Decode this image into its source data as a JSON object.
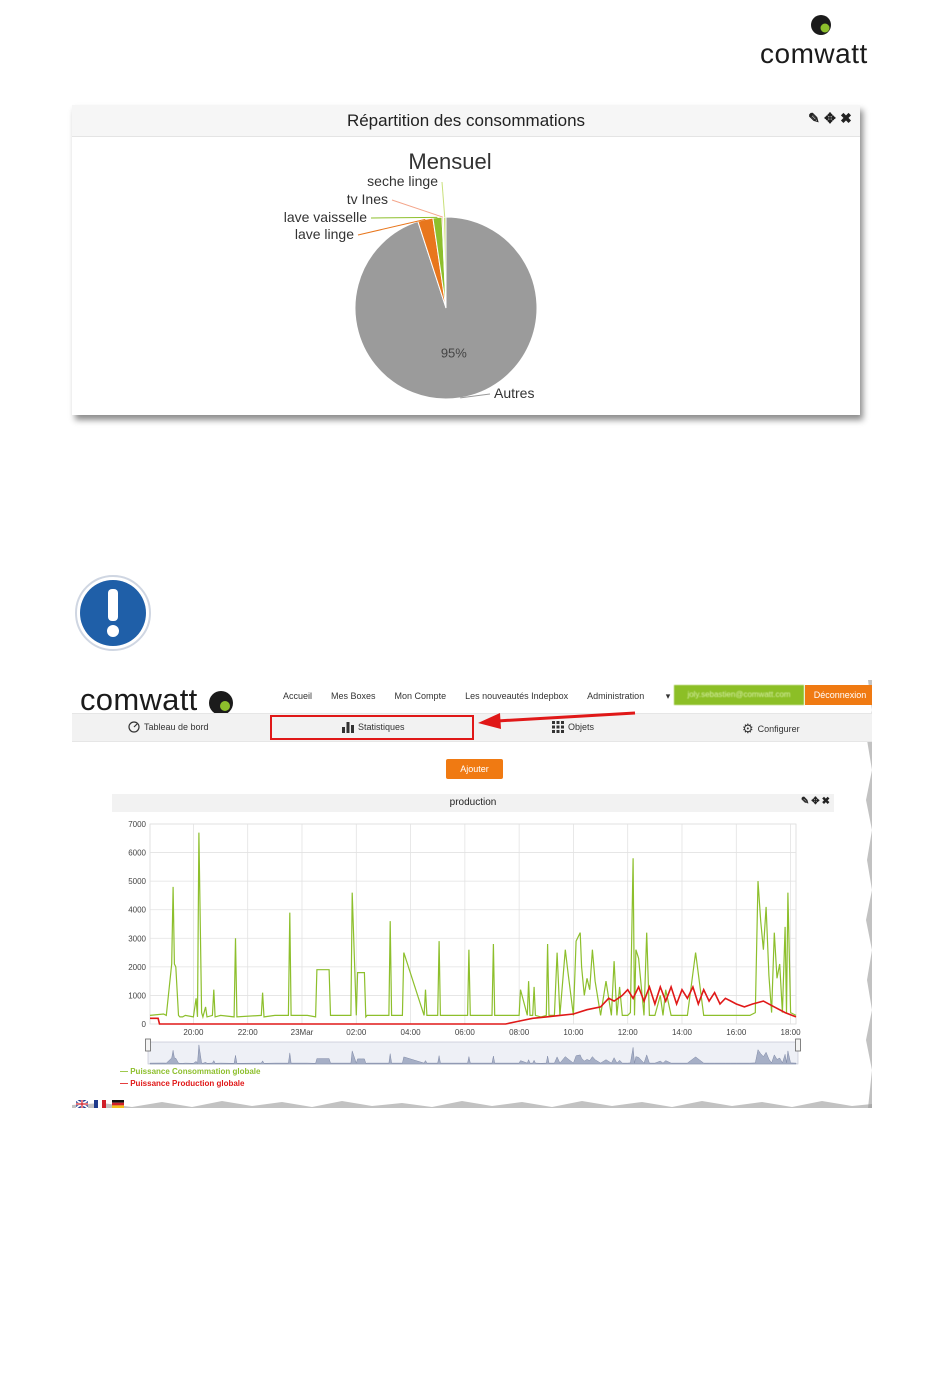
{
  "doc": {
    "brand": "comwatt"
  },
  "pie_panel": {
    "title": "Répartition des consommations",
    "tools": [
      "edit-icon",
      "move-icon",
      "close-icon"
    ]
  },
  "chart_data": [
    {
      "type": "pie",
      "title": "Mensuel",
      "slices": [
        {
          "label": "Autres",
          "value": 95,
          "color": "#9b9b9b",
          "data_label": "95%"
        },
        {
          "label": "lave linge",
          "value": 2.7,
          "color": "#e8761c"
        },
        {
          "label": "lave vaisselle",
          "value": 1.6,
          "color": "#8dbf2c"
        },
        {
          "label": "tv Ines",
          "value": 0.25,
          "color": "#f4a58a"
        },
        {
          "label": "seche linge",
          "value": 0.45,
          "color": "#c9e07a"
        }
      ]
    },
    {
      "type": "line",
      "title": "production",
      "x_ticks": [
        "20:00",
        "22:00",
        "23Mar",
        "02:00",
        "04:00",
        "06:00",
        "08:00",
        "10:00",
        "12:00",
        "14:00",
        "16:00",
        "18:00"
      ],
      "y_ticks": [
        0,
        1000,
        2000,
        3000,
        4000,
        5000,
        6000,
        7000
      ],
      "ylim": [
        0,
        7000
      ],
      "xlim_hours": [
        18.4,
        42.2
      ],
      "series": [
        {
          "name": "Puissance Consommation globale",
          "color": "#8dbf2c",
          "x": [
            18.4,
            18.9,
            19.0,
            19.2,
            19.25,
            19.3,
            19.35,
            19.45,
            19.5,
            19.6,
            19.7,
            20.0,
            20.1,
            20.15,
            20.2,
            20.3,
            20.35,
            20.45,
            20.5,
            20.7,
            20.75,
            20.8,
            21.0,
            21.5,
            21.55,
            21.6,
            22.5,
            22.55,
            22.6,
            23.0,
            23.5,
            23.55,
            23.6,
            24.2,
            24.5,
            24.55,
            24.6,
            25.0,
            25.05,
            25.8,
            25.85,
            26.0,
            26.05,
            26.2,
            26.3,
            26.35,
            26.4,
            27.2,
            27.25,
            27.3,
            27.7,
            27.75,
            28.5,
            28.55,
            28.6,
            29.0,
            29.05,
            29.1,
            30.1,
            30.15,
            30.2,
            31.0,
            31.05,
            31.1,
            32.0,
            32.05,
            32.3,
            32.35,
            32.4,
            32.5,
            32.55,
            32.6,
            32.8,
            33.0,
            33.05,
            33.1,
            33.3,
            33.4,
            33.5,
            33.7,
            33.8,
            34.0,
            34.1,
            34.25,
            34.3,
            34.4,
            34.5,
            34.6,
            34.7,
            34.8,
            35.0,
            35.2,
            35.4,
            35.5,
            35.6,
            35.7,
            35.8,
            36.0,
            36.1,
            36.2,
            36.25,
            36.3,
            36.4,
            36.6,
            36.7,
            36.8,
            37.0,
            37.2,
            37.3,
            37.4,
            37.6,
            38.0,
            38.2,
            38.5,
            38.8,
            39.0,
            39.2,
            39.4,
            39.6,
            39.8,
            40.0,
            40.5,
            40.7,
            40.8,
            40.9,
            41.0,
            41.1,
            41.2,
            41.3,
            41.4,
            41.5,
            41.6,
            41.7,
            41.8,
            41.85,
            41.9,
            42.0,
            42.2
          ],
          "y": [
            300,
            350,
            300,
            2100,
            4800,
            2100,
            2000,
            300,
            250,
            250,
            300,
            250,
            900,
            250,
            6700,
            400,
            250,
            600,
            250,
            300,
            1200,
            250,
            300,
            250,
            3000,
            250,
            300,
            1100,
            250,
            300,
            300,
            3900,
            300,
            300,
            250,
            1900,
            1900,
            1900,
            300,
            300,
            4600,
            300,
            1800,
            1800,
            1800,
            250,
            300,
            300,
            3600,
            300,
            300,
            2500,
            300,
            1200,
            300,
            300,
            2900,
            300,
            300,
            2600,
            300,
            300,
            2800,
            300,
            300,
            1200,
            300,
            1500,
            300,
            300,
            1300,
            300,
            250,
            300,
            2800,
            300,
            300,
            2500,
            300,
            2600,
            1800,
            300,
            2900,
            3200,
            2000,
            1000,
            1600,
            1200,
            2600,
            1500,
            300,
            1500,
            300,
            2200,
            300,
            1300,
            300,
            300,
            400,
            5800,
            300,
            2600,
            2300,
            300,
            3200,
            300,
            300,
            1000,
            300,
            1200,
            300,
            300,
            300,
            2500,
            300,
            300,
            300,
            300,
            300,
            300,
            300,
            300,
            400,
            5000,
            3600,
            2600,
            4100,
            1700,
            400,
            3200,
            1600,
            2100,
            400,
            3400,
            400,
            4600,
            400,
            300
          ]
        },
        {
          "name": "Puissance Production globale",
          "color": "#e01818",
          "x": [
            18.4,
            18.7,
            18.75,
            19.0,
            31.5,
            32.0,
            32.5,
            33.0,
            33.5,
            34.0,
            34.5,
            35.0,
            35.3,
            35.5,
            35.8,
            36.0,
            36.2,
            36.4,
            36.6,
            36.8,
            37.0,
            37.2,
            37.4,
            37.6,
            37.8,
            38.0,
            38.2,
            38.4,
            38.6,
            38.8,
            39.0,
            39.2,
            39.4,
            39.6,
            39.8,
            40.0,
            40.3,
            40.6,
            41.0,
            41.4,
            41.8,
            42.2
          ],
          "y": [
            200,
            200,
            0,
            0,
            0,
            100,
            200,
            250,
            300,
            350,
            500,
            600,
            900,
            800,
            1000,
            1200,
            900,
            1300,
            800,
            1300,
            700,
            1300,
            800,
            1300,
            700,
            1200,
            900,
            1300,
            700,
            1200,
            800,
            1100,
            700,
            900,
            800,
            700,
            600,
            700,
            800,
            600,
            400,
            250
          ]
        }
      ]
    }
  ],
  "nav": {
    "brand": "comwatt",
    "links": [
      "Accueil",
      "Mes Boxes",
      "Mon Compte",
      "Les nouveautés Indepbox",
      "Administration"
    ],
    "user": "joly.sebastien@comwatt.com",
    "logout": "Déconnexion"
  },
  "subnav": {
    "dashboard": "Tableau de bord",
    "stats": "Statistiques",
    "objects": "Objets",
    "configure": "Configurer"
  },
  "add_button": "Ajouter",
  "chart_panel": {
    "title": "production",
    "tools": [
      "edit-icon",
      "move-icon",
      "close-icon"
    ]
  },
  "legend": {
    "consumption": "— Puissance Consommation globale",
    "production": "— Puissance Production globale"
  },
  "colors": {
    "brand_green": "#8dbf2c",
    "brand_orange": "#f07a12",
    "highlight_red": "#e01818",
    "warning_blue": "#1f5fa8"
  }
}
